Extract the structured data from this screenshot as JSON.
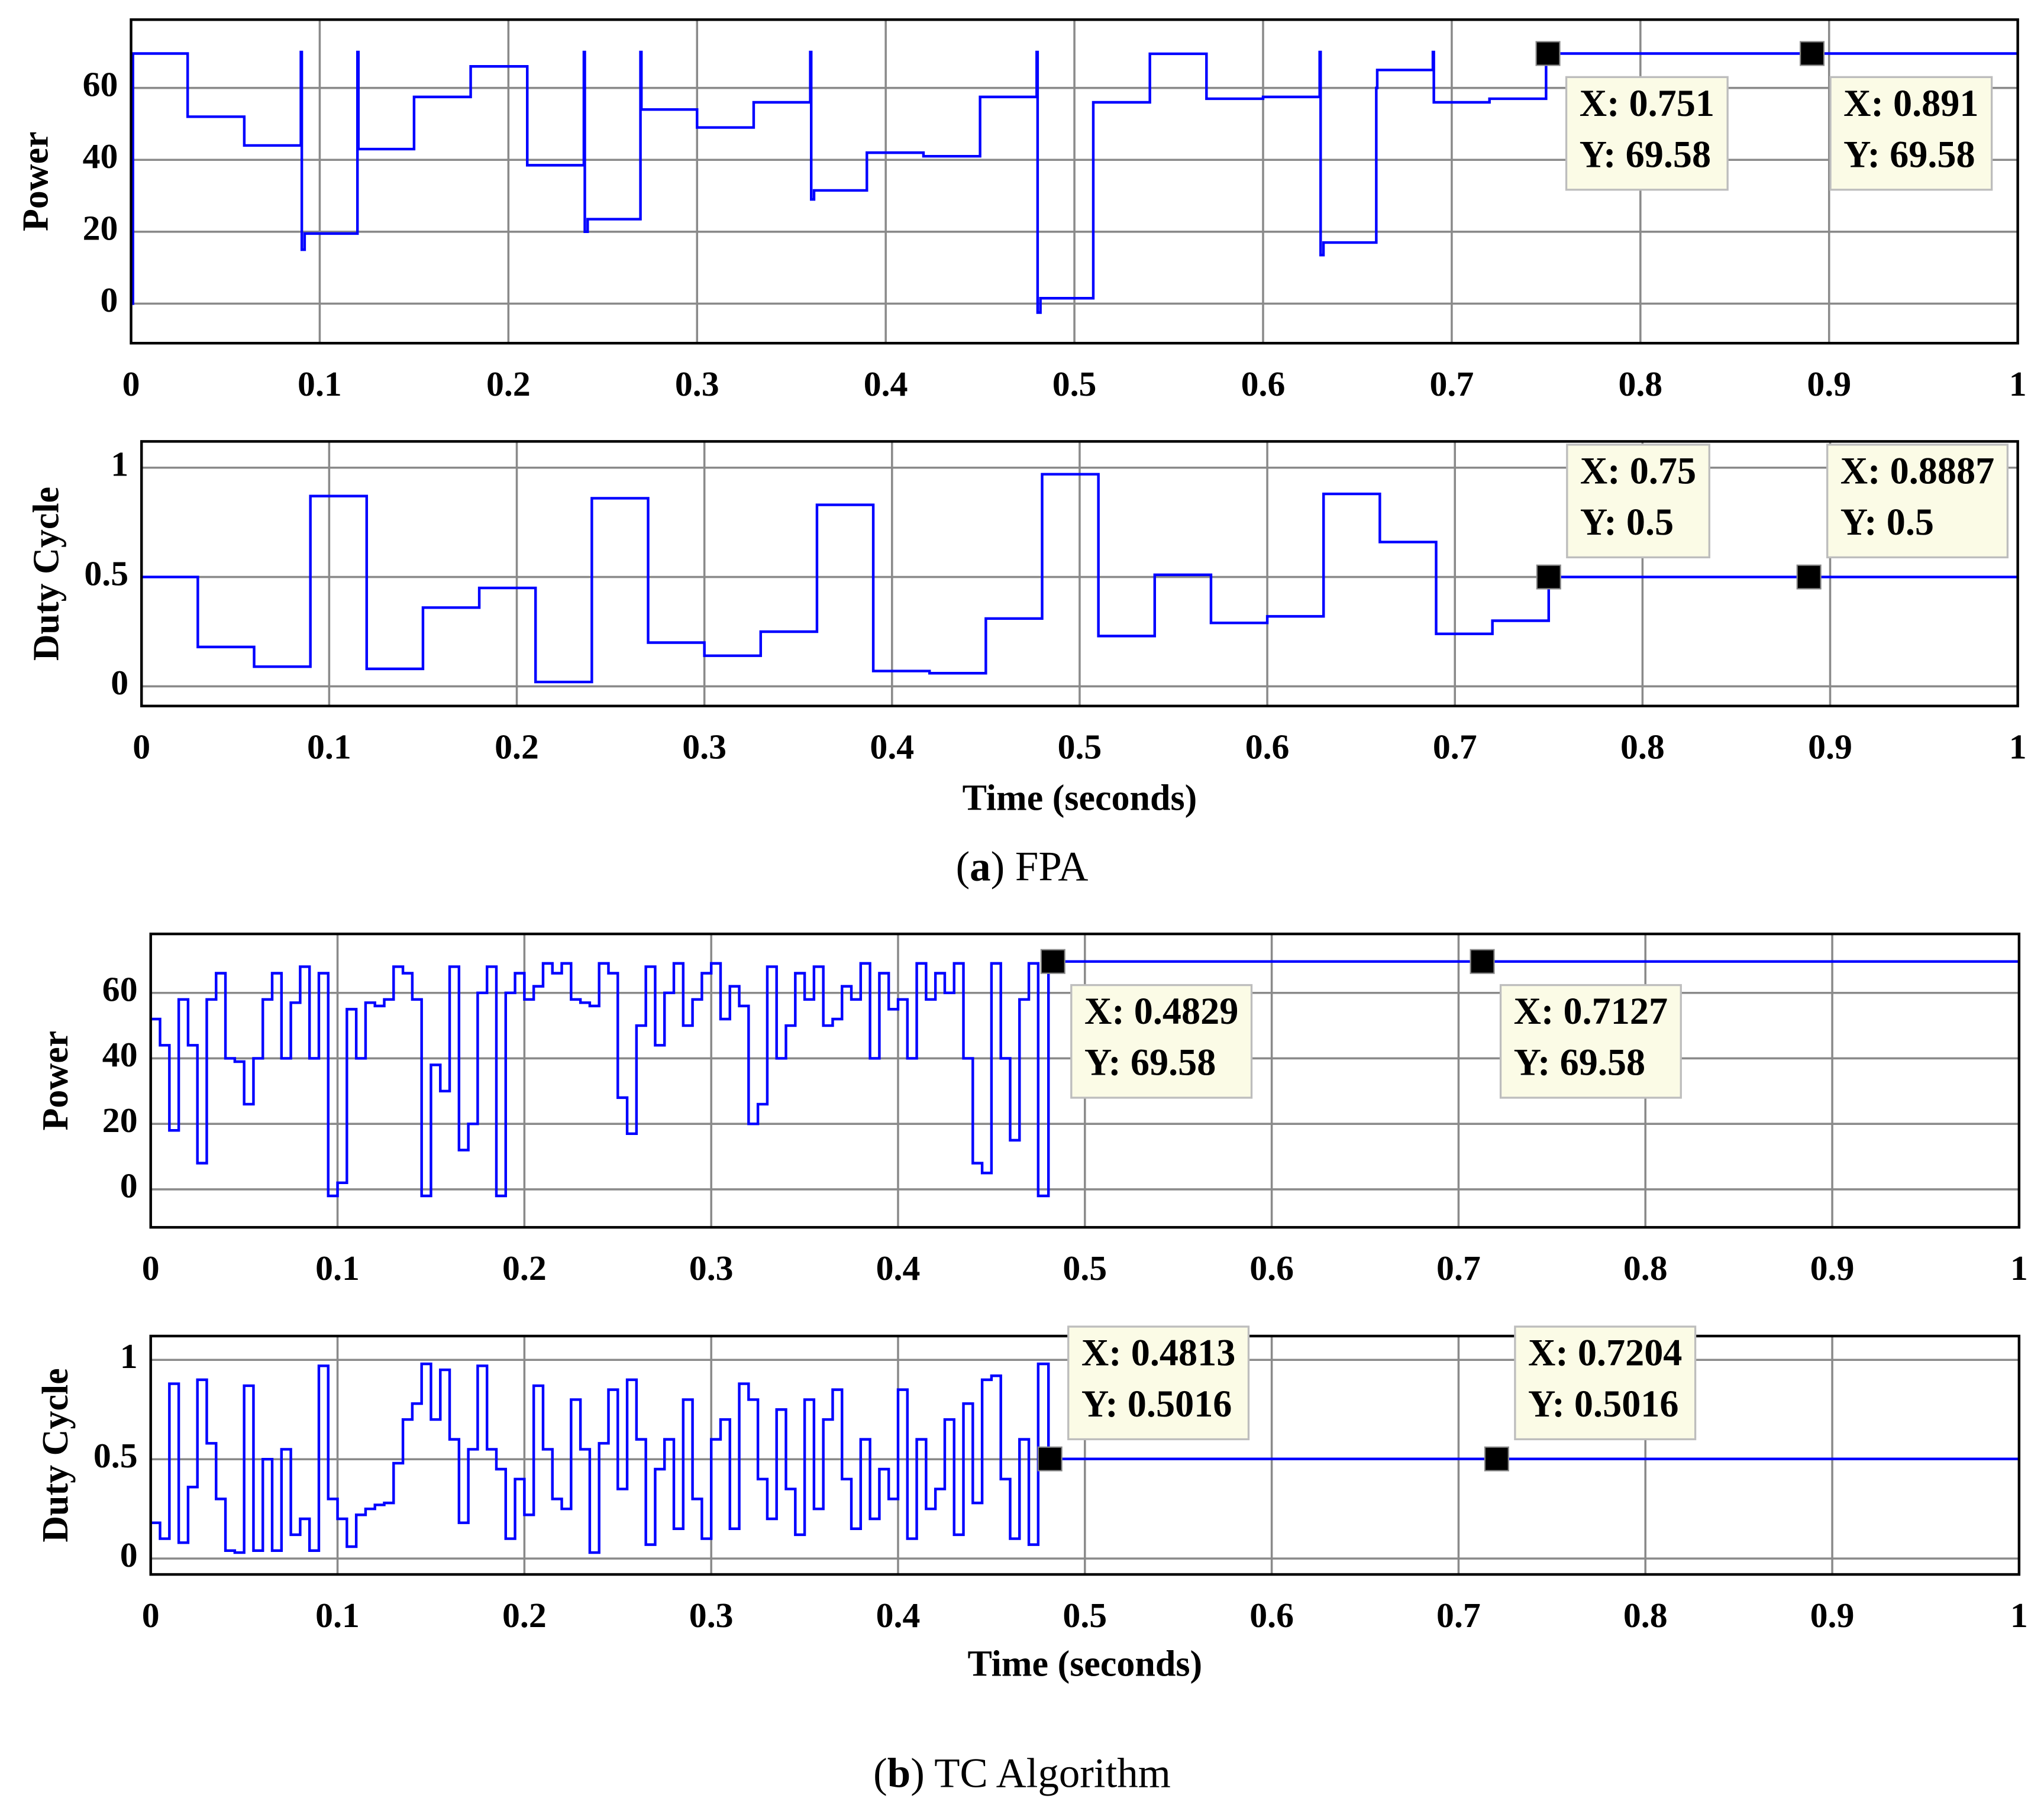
{
  "chart_data": [
    {
      "type": "line",
      "step": true,
      "ylabel": "Power",
      "color": "#0000ff",
      "grid": true,
      "xlim": [
        0,
        1
      ],
      "xticks": [
        0,
        0.1,
        0.2,
        0.3,
        0.4,
        0.5,
        0.6,
        0.7,
        0.8,
        0.9,
        1
      ],
      "ylim": [
        -11,
        79
      ],
      "yticks": [
        0,
        20,
        40,
        60
      ],
      "x": [
        0,
        0.001,
        0.03,
        0.06,
        0.09,
        0.0905,
        0.092,
        0.12,
        0.1205,
        0.15,
        0.18,
        0.21,
        0.24,
        0.2405,
        0.242,
        0.27,
        0.2705,
        0.3,
        0.33,
        0.36,
        0.3605,
        0.362,
        0.39,
        0.42,
        0.45,
        0.48,
        0.4805,
        0.482,
        0.51,
        0.54,
        0.57,
        0.6,
        0.63,
        0.6305,
        0.632,
        0.66,
        0.6605,
        0.69,
        0.6905,
        0.72,
        0.75,
        1
      ],
      "values": [
        0,
        69.58,
        52,
        44,
        70,
        15,
        19.5,
        70,
        43,
        57.5,
        66,
        38.5,
        70,
        20,
        23.5,
        70,
        54,
        49,
        56,
        70,
        29,
        31.5,
        42,
        41,
        57.5,
        70,
        -2.5,
        1.5,
        56,
        69.5,
        57,
        57.5,
        70,
        13.5,
        17,
        60,
        65,
        70,
        56,
        57,
        69.58,
        69.58
      ],
      "datatips": [
        {
          "x": 0.751,
          "y": 69.58,
          "label_x": "X: 0.751",
          "label_y": "Y: 69.58"
        },
        {
          "x": 0.891,
          "y": 69.58,
          "label_x": "X: 0.891",
          "label_y": "Y: 69.58"
        }
      ]
    },
    {
      "type": "line",
      "step": true,
      "ylabel": "Duty Cycle",
      "xlabel": "Time (seconds)",
      "color": "#0000ff",
      "grid": true,
      "xlim": [
        0,
        1
      ],
      "xticks": [
        0,
        0.1,
        0.2,
        0.3,
        0.4,
        0.5,
        0.6,
        0.7,
        0.8,
        0.9,
        1
      ],
      "ylim": [
        -0.09,
        1.12
      ],
      "yticks": [
        0,
        0.5,
        1
      ],
      "x": [
        0,
        0.03,
        0.06,
        0.09,
        0.12,
        0.15,
        0.18,
        0.21,
        0.24,
        0.27,
        0.3,
        0.33,
        0.36,
        0.39,
        0.42,
        0.45,
        0.48,
        0.51,
        0.54,
        0.57,
        0.6,
        0.63,
        0.66,
        0.69,
        0.72,
        0.75,
        1
      ],
      "values": [
        0.5,
        0.18,
        0.09,
        0.87,
        0.08,
        0.36,
        0.45,
        0.02,
        0.86,
        0.2,
        0.14,
        0.25,
        0.83,
        0.07,
        0.06,
        0.31,
        0.97,
        0.23,
        0.51,
        0.29,
        0.32,
        0.88,
        0.66,
        0.24,
        0.3,
        0.5,
        0.5
      ],
      "datatips": [
        {
          "x": 0.75,
          "y": 0.5,
          "label_x": "X: 0.75",
          "label_y": "Y: 0.5"
        },
        {
          "x": 0.8887,
          "y": 0.5,
          "label_x": "X: 0.8887",
          "label_y": "Y: 0.5"
        }
      ]
    },
    {
      "type": "line",
      "step": true,
      "ylabel": "Power",
      "color": "#0000ff",
      "grid": true,
      "xlim": [
        0,
        1
      ],
      "xticks": [
        0,
        0.1,
        0.2,
        0.3,
        0.4,
        0.5,
        0.6,
        0.7,
        0.8,
        0.9,
        1
      ],
      "ylim": [
        -11.6,
        78
      ],
      "yticks": [
        0,
        20,
        40,
        60
      ],
      "x": [
        0,
        0.005,
        0.01,
        0.015,
        0.02,
        0.025,
        0.03,
        0.035,
        0.04,
        0.045,
        0.05,
        0.055,
        0.06,
        0.065,
        0.07,
        0.075,
        0.08,
        0.085,
        0.09,
        0.095,
        0.1,
        0.105,
        0.11,
        0.115,
        0.12,
        0.125,
        0.13,
        0.135,
        0.14,
        0.145,
        0.15,
        0.155,
        0.16,
        0.165,
        0.17,
        0.175,
        0.18,
        0.185,
        0.19,
        0.195,
        0.2,
        0.205,
        0.21,
        0.215,
        0.22,
        0.225,
        0.23,
        0.235,
        0.24,
        0.245,
        0.25,
        0.255,
        0.26,
        0.265,
        0.27,
        0.275,
        0.28,
        0.285,
        0.29,
        0.295,
        0.3,
        0.305,
        0.31,
        0.315,
        0.32,
        0.325,
        0.33,
        0.335,
        0.34,
        0.345,
        0.35,
        0.355,
        0.36,
        0.365,
        0.37,
        0.375,
        0.38,
        0.385,
        0.39,
        0.395,
        0.4,
        0.405,
        0.41,
        0.415,
        0.42,
        0.425,
        0.43,
        0.435,
        0.44,
        0.445,
        0.45,
        0.455,
        0.46,
        0.465,
        0.47,
        0.475,
        0.4805,
        1
      ],
      "values": [
        52,
        44,
        18,
        58,
        44,
        8,
        58,
        66,
        40,
        39,
        26,
        40,
        58,
        66,
        40,
        57,
        68,
        40,
        66,
        -2,
        2,
        55,
        40,
        57,
        56,
        58,
        68,
        66,
        58,
        -2,
        38,
        30,
        68,
        12,
        20,
        60,
        68,
        -2,
        60,
        66,
        58,
        62,
        69,
        66,
        69,
        58,
        57,
        56,
        69,
        66,
        28,
        17,
        50,
        68,
        44,
        60,
        69,
        50,
        58,
        66,
        69,
        52,
        62,
        56,
        20,
        26,
        68,
        40,
        50,
        66,
        58,
        68,
        50,
        52,
        62,
        58,
        69,
        40,
        66,
        55,
        58,
        40,
        69,
        58,
        66,
        60,
        69,
        40,
        8,
        5,
        69,
        40,
        15,
        58,
        69,
        -2,
        69.58,
        69.58
      ],
      "datatips": [
        {
          "x": 0.4829,
          "y": 69.58,
          "label_x": "X: 0.4829",
          "label_y": "Y: 69.58"
        },
        {
          "x": 0.7127,
          "y": 69.58,
          "label_x": "X: 0.7127",
          "label_y": "Y: 69.58"
        }
      ]
    },
    {
      "type": "line",
      "step": true,
      "ylabel": "Duty Cycle",
      "xlabel": "Time (seconds)",
      "color": "#0000ff",
      "grid": true,
      "xlim": [
        0,
        1
      ],
      "xticks": [
        0,
        0.1,
        0.2,
        0.3,
        0.4,
        0.5,
        0.6,
        0.7,
        0.8,
        0.9,
        1
      ],
      "ylim": [
        -0.08,
        1.12
      ],
      "yticks": [
        0,
        0.5,
        1
      ],
      "x": [
        0,
        0.005,
        0.01,
        0.015,
        0.02,
        0.025,
        0.03,
        0.035,
        0.04,
        0.045,
        0.05,
        0.055,
        0.06,
        0.065,
        0.07,
        0.075,
        0.08,
        0.085,
        0.09,
        0.095,
        0.1,
        0.105,
        0.11,
        0.115,
        0.12,
        0.125,
        0.13,
        0.135,
        0.14,
        0.145,
        0.15,
        0.155,
        0.16,
        0.165,
        0.17,
        0.175,
        0.18,
        0.185,
        0.19,
        0.195,
        0.2,
        0.205,
        0.21,
        0.215,
        0.22,
        0.225,
        0.23,
        0.235,
        0.24,
        0.245,
        0.25,
        0.255,
        0.26,
        0.265,
        0.27,
        0.275,
        0.28,
        0.285,
        0.29,
        0.295,
        0.3,
        0.305,
        0.31,
        0.315,
        0.32,
        0.325,
        0.33,
        0.335,
        0.34,
        0.345,
        0.35,
        0.355,
        0.36,
        0.365,
        0.37,
        0.375,
        0.38,
        0.385,
        0.39,
        0.395,
        0.4,
        0.405,
        0.41,
        0.415,
        0.42,
        0.425,
        0.43,
        0.435,
        0.44,
        0.445,
        0.45,
        0.455,
        0.46,
        0.465,
        0.47,
        0.475,
        0.4805,
        1
      ],
      "values": [
        0.18,
        0.1,
        0.88,
        0.08,
        0.36,
        0.9,
        0.58,
        0.3,
        0.04,
        0.03,
        0.87,
        0.04,
        0.5,
        0.04,
        0.55,
        0.12,
        0.2,
        0.04,
        0.97,
        0.3,
        0.2,
        0.06,
        0.22,
        0.25,
        0.27,
        0.28,
        0.48,
        0.7,
        0.78,
        0.98,
        0.7,
        0.95,
        0.6,
        0.18,
        0.55,
        0.97,
        0.55,
        0.45,
        0.1,
        0.4,
        0.22,
        0.87,
        0.55,
        0.3,
        0.25,
        0.8,
        0.55,
        0.03,
        0.58,
        0.85,
        0.35,
        0.9,
        0.6,
        0.07,
        0.45,
        0.6,
        0.15,
        0.8,
        0.3,
        0.1,
        0.6,
        0.7,
        0.15,
        0.88,
        0.8,
        0.4,
        0.2,
        0.75,
        0.35,
        0.12,
        0.8,
        0.25,
        0.7,
        0.85,
        0.4,
        0.15,
        0.6,
        0.2,
        0.45,
        0.3,
        0.85,
        0.1,
        0.6,
        0.25,
        0.35,
        0.7,
        0.12,
        0.78,
        0.28,
        0.9,
        0.92,
        0.4,
        0.1,
        0.6,
        0.07,
        0.98,
        0.5016,
        0.5016
      ],
      "datatips": [
        {
          "x": 0.4813,
          "y": 0.5016,
          "label_x": "X: 0.4813",
          "label_y": "Y: 0.5016"
        },
        {
          "x": 0.7204,
          "y": 0.5016,
          "label_x": "X: 0.7204",
          "label_y": "Y: 0.5016"
        }
      ]
    }
  ],
  "captions": [
    [
      "(",
      "a",
      ") FPA"
    ],
    [
      "(",
      "b",
      ") TC Algorithm"
    ]
  ]
}
